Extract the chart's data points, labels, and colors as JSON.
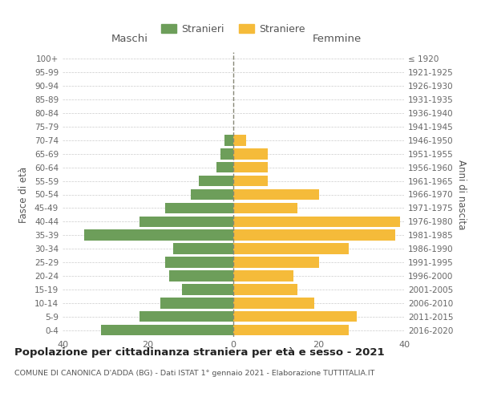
{
  "age_groups": [
    "0-4",
    "5-9",
    "10-14",
    "15-19",
    "20-24",
    "25-29",
    "30-34",
    "35-39",
    "40-44",
    "45-49",
    "50-54",
    "55-59",
    "60-64",
    "65-69",
    "70-74",
    "75-79",
    "80-84",
    "85-89",
    "90-94",
    "95-99",
    "100+"
  ],
  "birth_years": [
    "2016-2020",
    "2011-2015",
    "2006-2010",
    "2001-2005",
    "1996-2000",
    "1991-1995",
    "1986-1990",
    "1981-1985",
    "1976-1980",
    "1971-1975",
    "1966-1970",
    "1961-1965",
    "1956-1960",
    "1951-1955",
    "1946-1950",
    "1941-1945",
    "1936-1940",
    "1931-1935",
    "1926-1930",
    "1921-1925",
    "≤ 1920"
  ],
  "males": [
    31,
    22,
    17,
    12,
    15,
    16,
    14,
    35,
    22,
    16,
    10,
    8,
    4,
    3,
    2,
    0,
    0,
    0,
    0,
    0,
    0
  ],
  "females": [
    27,
    29,
    19,
    15,
    14,
    20,
    27,
    38,
    39,
    15,
    20,
    8,
    8,
    8,
    3,
    0,
    0,
    0,
    0,
    0,
    0
  ],
  "male_color": "#6d9e5a",
  "female_color": "#f5bb3a",
  "bg_color": "#ffffff",
  "grid_color": "#cccccc",
  "bar_height": 0.8,
  "xlim": 40,
  "title": "Popolazione per cittadinanza straniera per età e sesso - 2021",
  "subtitle": "COMUNE DI CANONICA D'ADDA (BG) - Dati ISTAT 1° gennaio 2021 - Elaborazione TUTTITALIA.IT",
  "xlabel_left": "Maschi",
  "xlabel_right": "Femmine",
  "ylabel_left": "Fasce di età",
  "ylabel_right": "Anni di nascita",
  "legend_male": "Stranieri",
  "legend_female": "Straniere"
}
